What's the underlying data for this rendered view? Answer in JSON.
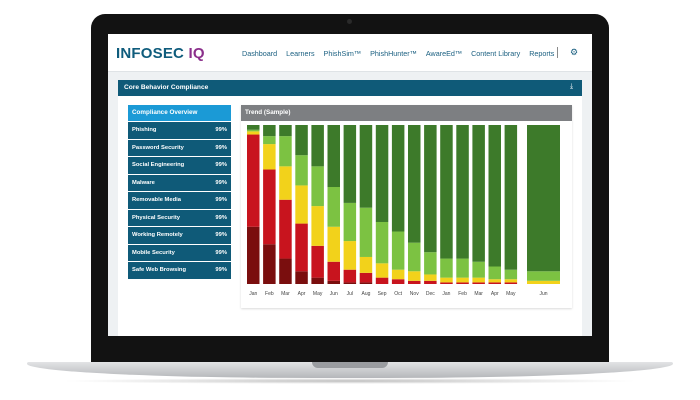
{
  "header": {
    "logo_main": "INFOSEC",
    "logo_accent": "IQ",
    "nav": [
      "Dashboard",
      "Learners",
      "PhishSim™",
      "PhishHunter™",
      "AwareEd™",
      "Content Library",
      "Reports"
    ],
    "settings_icon": "gear-icon"
  },
  "card": {
    "title": "Core Behavior Compliance",
    "download_icon": "download-icon"
  },
  "compliance": {
    "heading": "Compliance Overview",
    "items": [
      {
        "label": "Phishing",
        "value": "99%"
      },
      {
        "label": "Password Security",
        "value": "99%"
      },
      {
        "label": "Social Engineering",
        "value": "99%"
      },
      {
        "label": "Malware",
        "value": "99%"
      },
      {
        "label": "Removable Media",
        "value": "99%"
      },
      {
        "label": "Physical Security",
        "value": "99%"
      },
      {
        "label": "Working Remotely",
        "value": "99%"
      },
      {
        "label": "Mobile Security",
        "value": "99%"
      },
      {
        "label": "Safe Web Browsing",
        "value": "99%"
      }
    ]
  },
  "chart_data": {
    "type": "bar",
    "title": "Trend (Sample)",
    "stacked": true,
    "categories": [
      "Jan",
      "Feb",
      "Mar",
      "Apr",
      "May",
      "Jun",
      "Jul",
      "Aug",
      "Sep",
      "Oct",
      "Nov",
      "Dec",
      "Jan",
      "Feb",
      "Mar",
      "Apr",
      "May",
      "Jun"
    ],
    "colors": {
      "dark_red": "#7a0e0e",
      "red": "#c8141e",
      "yellow": "#f2d21b",
      "light_green": "#7cc242",
      "dark_green": "#3d7a2a"
    },
    "series": [
      {
        "name": "",
        "color": "#7a0e0e",
        "values": [
          36,
          25,
          16,
          8,
          4,
          2,
          1,
          1,
          0,
          0,
          0,
          0,
          0,
          0,
          0,
          0,
          0,
          0
        ]
      },
      {
        "name": "",
        "color": "#c8141e",
        "values": [
          58,
          47,
          37,
          30,
          20,
          12,
          8,
          6,
          4,
          3,
          2,
          2,
          1,
          1,
          1,
          1,
          1,
          0
        ]
      },
      {
        "name": "",
        "color": "#f2d21b",
        "values": [
          2,
          16,
          21,
          24,
          25,
          22,
          18,
          10,
          9,
          6,
          6,
          4,
          3,
          3,
          3,
          2,
          2,
          2
        ]
      },
      {
        "name": "",
        "color": "#7cc242",
        "values": [
          1,
          5,
          19,
          19,
          25,
          25,
          24,
          31,
          26,
          24,
          18,
          14,
          12,
          12,
          10,
          8,
          6,
          6
        ]
      },
      {
        "name": "",
        "color": "#3d7a2a",
        "values": [
          3,
          7,
          7,
          19,
          26,
          39,
          49,
          52,
          61,
          67,
          74,
          80,
          84,
          84,
          86,
          89,
          91,
          92
        ]
      }
    ],
    "ylim": [
      0,
      100
    ]
  }
}
